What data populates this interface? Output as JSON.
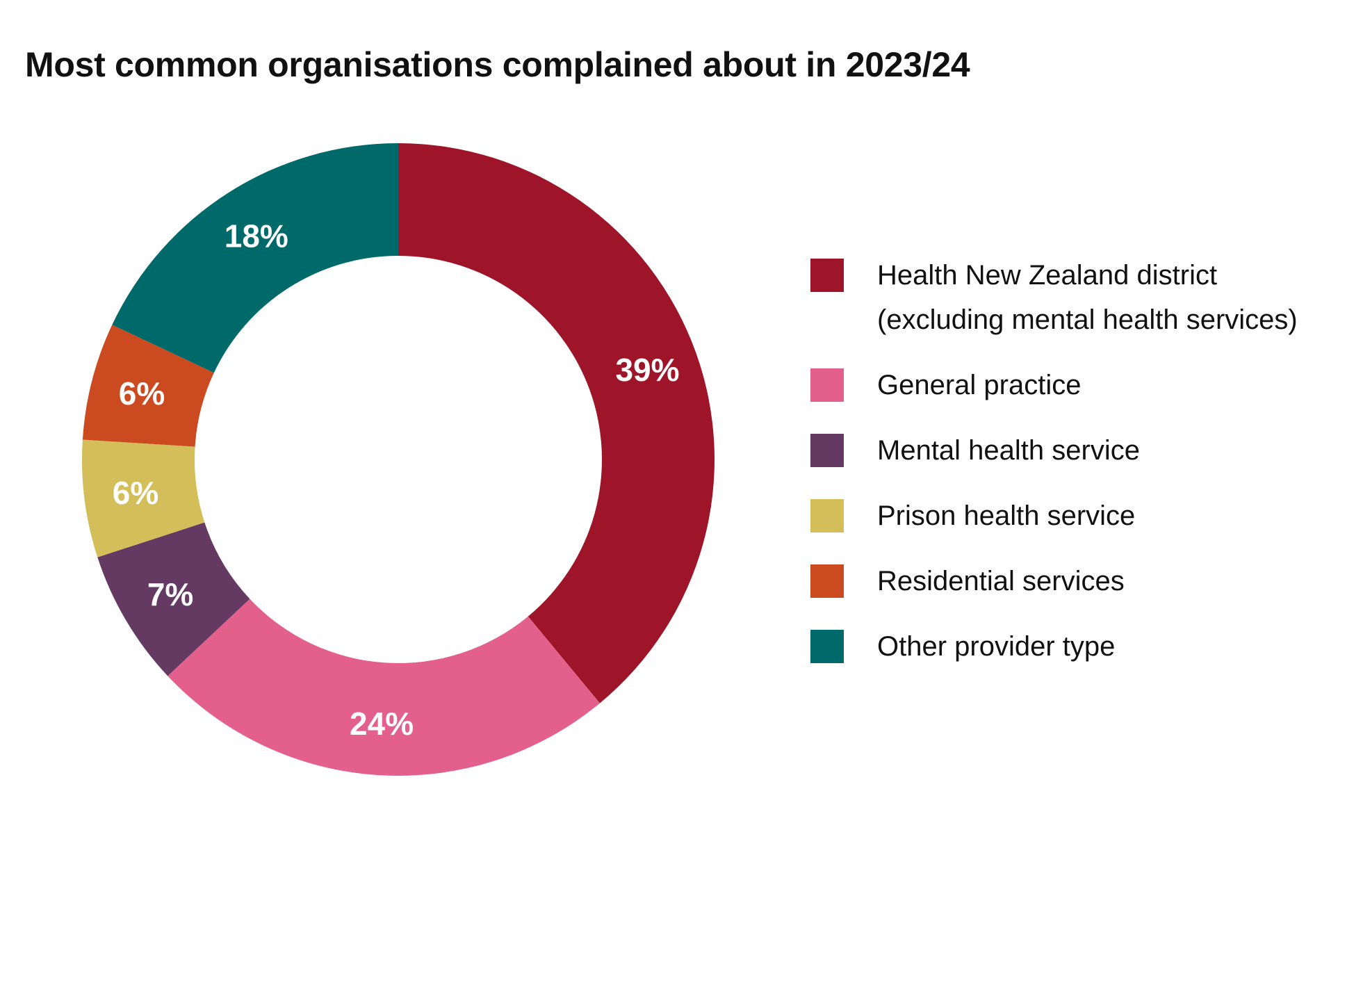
{
  "chart_data": {
    "type": "pie",
    "title": "Most common organisations complained about in 2023/24",
    "donut": true,
    "legend_position": "right",
    "slices": [
      {
        "label": "Health New Zealand district (excluding mental health services)",
        "value": 39,
        "value_label": "39%",
        "color": "#9e1428"
      },
      {
        "label": "General practice",
        "value": 24,
        "value_label": "24%",
        "color": "#e3608c"
      },
      {
        "label": "Mental health service",
        "value": 7,
        "value_label": "7%",
        "color": "#653a62"
      },
      {
        "label": "Prison health service",
        "value": 6,
        "value_label": "6%",
        "color": "#d3be5a"
      },
      {
        "label": "Residential services",
        "value": 6,
        "value_label": "6%",
        "color": "#cb4a1f"
      },
      {
        "label": "Other provider type",
        "value": 18,
        "value_label": "18%",
        "color": "#006a6b"
      }
    ]
  }
}
